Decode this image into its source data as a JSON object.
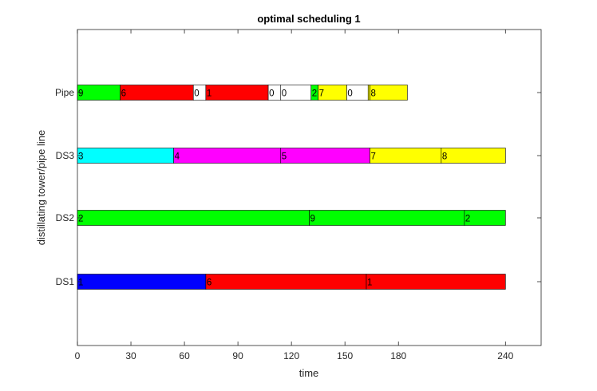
{
  "chart_data": {
    "type": "gantt",
    "title": "optimal scheduling 1",
    "xlabel": "time",
    "ylabel": "distillating tower/pipe line",
    "xlim": [
      0,
      260
    ],
    "x_ticks": [
      0,
      30,
      60,
      90,
      120,
      150,
      180,
      240
    ],
    "rows": [
      {
        "name": "DS1",
        "segments": [
          {
            "start": 0,
            "end": 72,
            "label": "1",
            "color": "#0000ff"
          },
          {
            "start": 72,
            "end": 162,
            "label": "6",
            "color": "#ff0000"
          },
          {
            "start": 162,
            "end": 240,
            "label": "1",
            "color": "#ff0000"
          }
        ]
      },
      {
        "name": "DS2",
        "segments": [
          {
            "start": 0,
            "end": 130,
            "label": "2",
            "color": "#00ff00"
          },
          {
            "start": 130,
            "end": 217,
            "label": "9",
            "color": "#00ff00"
          },
          {
            "start": 217,
            "end": 240,
            "label": "2",
            "color": "#00ff00"
          }
        ]
      },
      {
        "name": "DS3",
        "segments": [
          {
            "start": 0,
            "end": 54,
            "label": "3",
            "color": "#00ffff"
          },
          {
            "start": 54,
            "end": 114,
            "label": "4",
            "color": "#ff00ff"
          },
          {
            "start": 114,
            "end": 164,
            "label": "5",
            "color": "#ff00ff"
          },
          {
            "start": 164,
            "end": 204,
            "label": "7",
            "color": "#ffff00"
          },
          {
            "start": 204,
            "end": 240,
            "label": "8",
            "color": "#ffff00"
          }
        ]
      },
      {
        "name": "Pipe",
        "segments": [
          {
            "start": 0,
            "end": 24,
            "label": "9",
            "color": "#00ff00"
          },
          {
            "start": 24,
            "end": 65,
            "label": "6",
            "color": "#ff0000"
          },
          {
            "start": 65,
            "end": 72,
            "label": "0",
            "color": "#ffffff"
          },
          {
            "start": 72,
            "end": 107,
            "label": "1",
            "color": "#ff0000"
          },
          {
            "start": 107,
            "end": 114,
            "label": "0",
            "color": "#ffffff"
          },
          {
            "start": 114,
            "end": 131,
            "label": "0",
            "color": "#ffffff"
          },
          {
            "start": 131,
            "end": 135,
            "label": "2",
            "color": "#00ff00"
          },
          {
            "start": 135,
            "end": 151,
            "label": "7",
            "color": "#ffff00"
          },
          {
            "start": 151,
            "end": 163,
            "label": "0",
            "color": "#ffffff"
          },
          {
            "start": 163,
            "end": 164,
            "label": "",
            "color": "#ffff00"
          },
          {
            "start": 164,
            "end": 185,
            "label": "8",
            "color": "#ffff00"
          }
        ]
      }
    ],
    "grid": false,
    "legend": false
  }
}
